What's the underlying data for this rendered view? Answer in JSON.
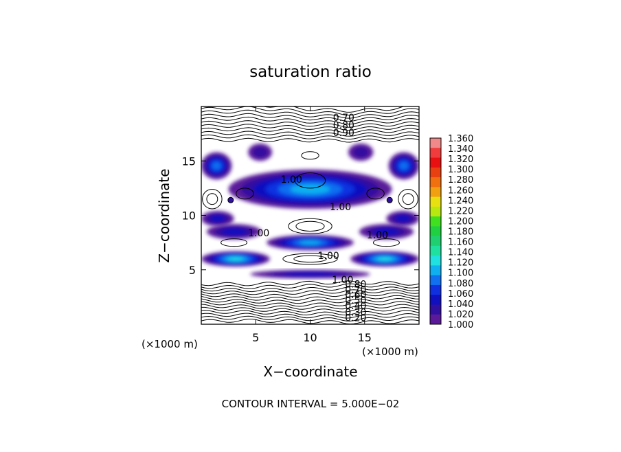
{
  "chart_data": {
    "type": "heatmap",
    "title": "saturation ratio",
    "xlabel": "X−coordinate",
    "ylabel": "Z−coordinate",
    "x_unit_label": "(×1000 m)",
    "y_unit_label": "(×1000 m)",
    "xlim": [
      0,
      20
    ],
    "ylim": [
      0,
      20
    ],
    "x_ticks": [
      5,
      10,
      15
    ],
    "y_ticks": [
      5,
      10,
      15
    ],
    "footer": "CONTOUR INTERVAL = 5.000E−02",
    "colorbar": {
      "levels": [
        "1.360",
        "1.340",
        "1.320",
        "1.300",
        "1.280",
        "1.260",
        "1.240",
        "1.220",
        "1.200",
        "1.180",
        "1.160",
        "1.140",
        "1.120",
        "1.100",
        "1.080",
        "1.060",
        "1.040",
        "1.020",
        "1.000"
      ],
      "colors": [
        "#f08a8a",
        "#f03c3c",
        "#e81010",
        "#e84010",
        "#f07010",
        "#f0a010",
        "#e8e010",
        "#b8e810",
        "#40e020",
        "#20d040",
        "#20d070",
        "#20e0a0",
        "#20e0e0",
        "#10b0f0",
        "#1070f0",
        "#1030e0",
        "#1010c0",
        "#3010a0",
        "#5a1a9a"
      ]
    },
    "contour_labels": [
      {
        "text": "0.70",
        "x": 12.1,
        "z": 19.0
      },
      {
        "text": "0.80",
        "x": 12.1,
        "z": 18.3
      },
      {
        "text": "0.90",
        "x": 12.1,
        "z": 17.6
      },
      {
        "text": "1.00",
        "x": 7.3,
        "z": 13.3
      },
      {
        "text": "1.00",
        "x": 11.8,
        "z": 10.8
      },
      {
        "text": "1.00",
        "x": 4.3,
        "z": 8.4
      },
      {
        "text": "1.00",
        "x": 15.2,
        "z": 8.2
      },
      {
        "text": "1.00",
        "x": 10.7,
        "z": 6.3
      },
      {
        "text": "1.00",
        "x": 12.0,
        "z": 4.1
      },
      {
        "text": "0.80",
        "x": 13.2,
        "z": 3.7
      },
      {
        "text": "0.70",
        "x": 13.2,
        "z": 3.2
      },
      {
        "text": "0.60",
        "x": 13.2,
        "z": 2.7
      },
      {
        "text": "0.50",
        "x": 13.2,
        "z": 2.2
      },
      {
        "text": "0.40",
        "x": 13.2,
        "z": 1.7
      },
      {
        "text": "0.30",
        "x": 13.2,
        "z": 1.1
      },
      {
        "text": "0.20",
        "x": 13.2,
        "z": 0.6
      }
    ],
    "supersaturated_bands": [
      {
        "x0": 0.0,
        "x1": 2.8,
        "z0": 13.3,
        "z1": 15.8,
        "level": 1.08
      },
      {
        "x0": 17.2,
        "x1": 20.0,
        "z0": 13.3,
        "z1": 15.8,
        "level": 1.08
      },
      {
        "x0": 4.3,
        "x1": 6.5,
        "z0": 15.0,
        "z1": 16.6,
        "level": 1.02
      },
      {
        "x0": 13.5,
        "x1": 15.8,
        "z0": 15.0,
        "z1": 16.6,
        "level": 1.02
      },
      {
        "x0": 2.5,
        "x1": 17.5,
        "z0": 10.6,
        "z1": 14.2,
        "level": 1.1
      },
      {
        "x0": 0.0,
        "x1": 3.0,
        "z0": 9.0,
        "z1": 10.4,
        "level": 1.04
      },
      {
        "x0": 17.0,
        "x1": 20.0,
        "z0": 9.0,
        "z1": 10.4,
        "level": 1.04
      },
      {
        "x0": 0.5,
        "x1": 5.5,
        "z0": 7.8,
        "z1": 9.2,
        "level": 1.04
      },
      {
        "x0": 14.5,
        "x1": 19.5,
        "z0": 7.8,
        "z1": 9.2,
        "level": 1.04
      },
      {
        "x0": 6.0,
        "x1": 14.0,
        "z0": 6.8,
        "z1": 8.2,
        "level": 1.1
      },
      {
        "x0": 0.0,
        "x1": 6.3,
        "z0": 5.3,
        "z1": 6.7,
        "level": 1.12
      },
      {
        "x0": 13.7,
        "x1": 20.0,
        "z0": 5.3,
        "z1": 6.7,
        "level": 1.12
      },
      {
        "x0": 4.5,
        "x1": 15.5,
        "z0": 4.2,
        "z1": 5.0,
        "level": 1.04
      }
    ]
  }
}
